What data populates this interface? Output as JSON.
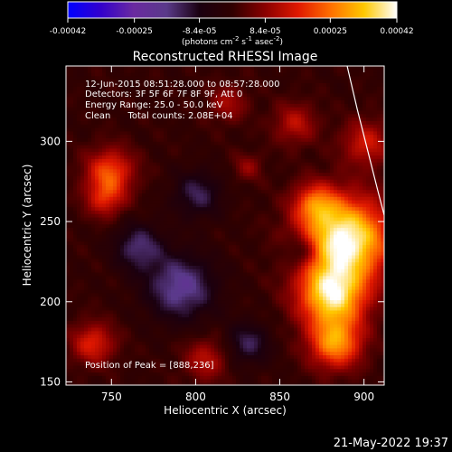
{
  "colors": {
    "background": "#000000",
    "text": "#ffffff",
    "colormap": [
      "#0000ff",
      "#3300cc",
      "#6a2aa0",
      "#5a3a8a",
      "#1a0010",
      "#300000",
      "#8a0000",
      "#e01800",
      "#ff7000",
      "#ffc800",
      "#ffffff"
    ]
  },
  "colorbar": {
    "ticks": [
      "-0.00042",
      "-0.00025",
      "-8.4e-05",
      "8.4e-05",
      "0.00025",
      "0.00042"
    ],
    "tick_values": [
      -0.00042,
      -0.00025,
      -8.4e-05,
      8.4e-05,
      0.00025,
      0.00042
    ],
    "range": [
      -0.00042,
      0.00042
    ],
    "units_main": "(photons cm",
    "units_sup1": "-2",
    "units_mid": " s",
    "units_sup2": "-1",
    "units_end": " asec",
    "units_sup3": "-2",
    "units_close": ")"
  },
  "info_lines": [
    "12-Jun-2015 08:51:28.000 to 08:57:28.000",
    "Detectors: 3F 5F 6F 7F 8F 9F, Att 0",
    "Energy Range: 25.0 - 50.0 keV",
    "Clean      Total counts: 2.08E+04"
  ],
  "peak_label": "Position of Peak = [888,236]",
  "timestamp": "21-May-2022 19:37",
  "chart_data": {
    "type": "heatmap",
    "title": "Reconstructed RHESSI Image",
    "xlabel": "Heliocentric X (arcsec)",
    "ylabel": "Heliocentric Y (arcsec)",
    "xlim": [
      723,
      912
    ],
    "ylim": [
      148,
      347
    ],
    "x_ticks": [
      750,
      800,
      850,
      900
    ],
    "y_ticks": [
      150,
      200,
      250,
      300
    ],
    "x_tick_labels": [
      "750",
      "800",
      "850",
      "900"
    ],
    "y_tick_labels": [
      "150",
      "200",
      "250",
      "300"
    ],
    "peak": {
      "x": 888,
      "y": 236
    },
    "grid": false,
    "limb": [
      [
        890,
        347
      ],
      [
        896,
        320
      ],
      [
        902,
        295
      ],
      [
        908,
        270
      ],
      [
        912,
        254
      ]
    ],
    "blobs": [
      {
        "x": 888,
        "y": 240,
        "r": 18,
        "amp": 1.0
      },
      {
        "x": 880,
        "y": 205,
        "r": 14,
        "amp": 0.85
      },
      {
        "x": 882,
        "y": 175,
        "r": 11,
        "amp": 0.65
      },
      {
        "x": 870,
        "y": 262,
        "r": 9,
        "amp": 0.45
      },
      {
        "x": 900,
        "y": 300,
        "r": 10,
        "amp": 0.35
      },
      {
        "x": 858,
        "y": 312,
        "r": 9,
        "amp": 0.3
      },
      {
        "x": 748,
        "y": 282,
        "r": 10,
        "amp": 0.5
      },
      {
        "x": 745,
        "y": 265,
        "r": 8,
        "amp": 0.35
      },
      {
        "x": 738,
        "y": 175,
        "r": 9,
        "amp": 0.4
      },
      {
        "x": 805,
        "y": 165,
        "r": 9,
        "amp": 0.3
      },
      {
        "x": 818,
        "y": 325,
        "r": 8,
        "amp": 0.25
      },
      {
        "x": 830,
        "y": 285,
        "r": 6,
        "amp": 0.2
      },
      {
        "x": 862,
        "y": 232,
        "r": 7,
        "amp": -0.3
      },
      {
        "x": 790,
        "y": 210,
        "r": 14,
        "amp": -0.45
      },
      {
        "x": 765,
        "y": 235,
        "r": 10,
        "amp": -0.35
      },
      {
        "x": 800,
        "y": 268,
        "r": 10,
        "amp": -0.3
      },
      {
        "x": 830,
        "y": 175,
        "r": 9,
        "amp": -0.3
      }
    ]
  }
}
